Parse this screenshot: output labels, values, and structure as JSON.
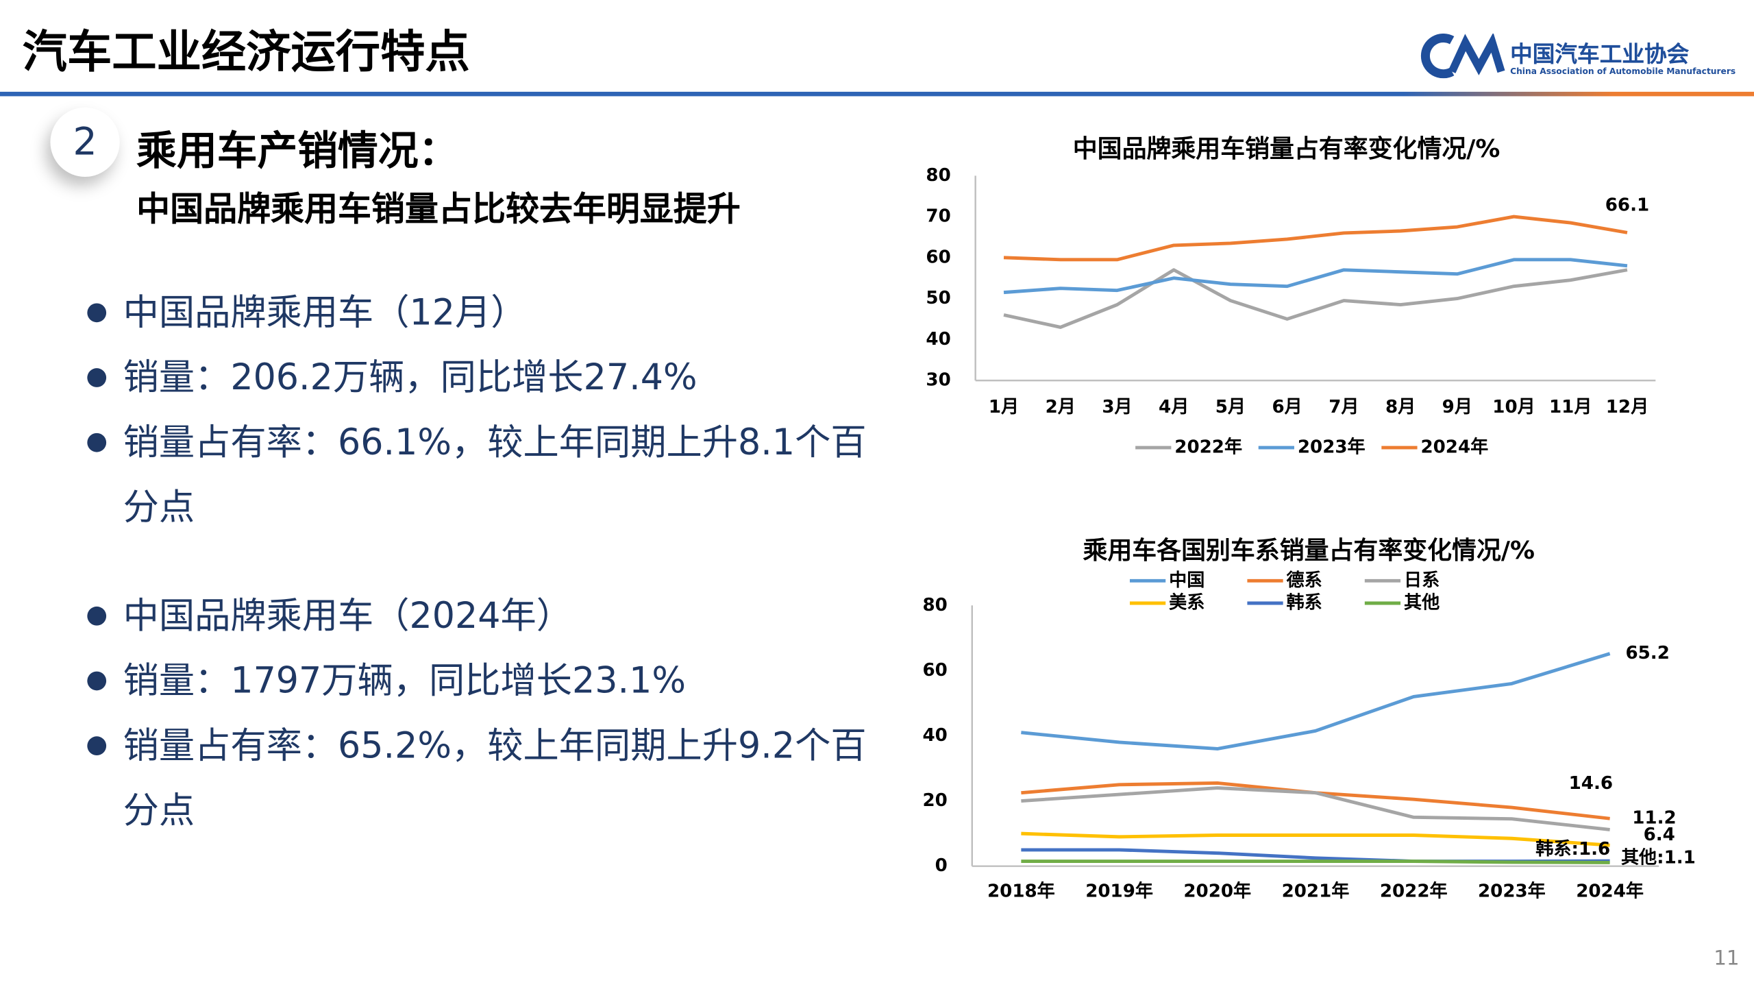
{
  "header": {
    "title": "汽车工业经济运行特点",
    "logo_cn": "中国汽车工业协会",
    "logo_en": "China Association of Automobile Manufacturers"
  },
  "section": {
    "number": "2",
    "heading": "乘用车产销情况：",
    "subheading": "中国品牌乘用车销量占比较去年明显提升"
  },
  "bullets": [
    "中国品牌乘用车（12月）",
    "销量：206.2万辆，同比增长27.4%",
    "销量占有率：66.1%，较上年同期上升8.1个百分点",
    "中国品牌乘用车（2024年）",
    "销量：1797万辆，同比增长23.1%",
    "销量占有率：65.2%，较上年同期上升9.2个百分点"
  ],
  "page_number": "11",
  "chart_data": [
    {
      "type": "line",
      "title": "中国品牌乘用车销量占有率变化情况/%",
      "categories": [
        "1月",
        "2月",
        "3月",
        "4月",
        "5月",
        "6月",
        "7月",
        "8月",
        "9月",
        "10月",
        "11月",
        "12月"
      ],
      "series": [
        {
          "name": "2022年",
          "color": "#a5a5a5",
          "values": [
            46,
            43,
            48.5,
            57,
            49.5,
            45,
            49.5,
            48.5,
            50,
            53,
            54.5,
            57
          ]
        },
        {
          "name": "2023年",
          "color": "#5b9bd5",
          "values": [
            51.5,
            52.5,
            52,
            55,
            53.5,
            53,
            57,
            56.5,
            56,
            59.5,
            59.5,
            58
          ]
        },
        {
          "name": "2024年",
          "color": "#ed7d31",
          "values": [
            60,
            59.5,
            59.5,
            63,
            63.5,
            64.5,
            66,
            66.5,
            67.5,
            70,
            68.5,
            66.1
          ],
          "label_last": true
        }
      ],
      "ylim": [
        30,
        80
      ],
      "yticks": [
        30,
        40,
        50,
        60,
        70,
        80
      ],
      "legend": "bottom"
    },
    {
      "type": "line",
      "title": "乘用车各国别车系销量占有率变化情况/%",
      "categories": [
        "2018年",
        "2019年",
        "2020年",
        "2021年",
        "2022年",
        "2023年",
        "2024年"
      ],
      "series": [
        {
          "name": "中国",
          "color": "#5b9bd5",
          "values": [
            41,
            38,
            36,
            41.5,
            52,
            56,
            65.2
          ],
          "label_last": true
        },
        {
          "name": "德系",
          "color": "#ed7d31",
          "values": [
            22.5,
            25,
            25.5,
            22.5,
            20.5,
            18,
            14.6
          ],
          "label_last": true
        },
        {
          "name": "日系",
          "color": "#a5a5a5",
          "values": [
            20,
            22,
            24,
            22.5,
            15,
            14.5,
            11.2
          ],
          "label_last": true
        },
        {
          "name": "美系",
          "color": "#ffc000",
          "values": [
            10,
            9,
            9.5,
            9.5,
            9.5,
            8.5,
            6.4
          ],
          "label_last": true
        },
        {
          "name": "韩系",
          "color": "#4472c4",
          "values": [
            5,
            5,
            4,
            2.5,
            1.5,
            1.5,
            1.6
          ],
          "label_last": true,
          "value_labels": [
            null,
            null,
            null,
            null,
            null,
            null,
            "韩系:1.6"
          ]
        },
        {
          "name": "其他",
          "color": "#70ad47",
          "values": [
            1.5,
            1.5,
            1.5,
            1.5,
            1.5,
            1.2,
            1.1
          ],
          "label_last": true,
          "value_labels": [
            null,
            null,
            null,
            null,
            null,
            null,
            "其他:1.1"
          ]
        }
      ],
      "ylim": [
        0,
        80
      ],
      "yticks": [
        0,
        20,
        40,
        60,
        80
      ],
      "legend": "top"
    }
  ]
}
